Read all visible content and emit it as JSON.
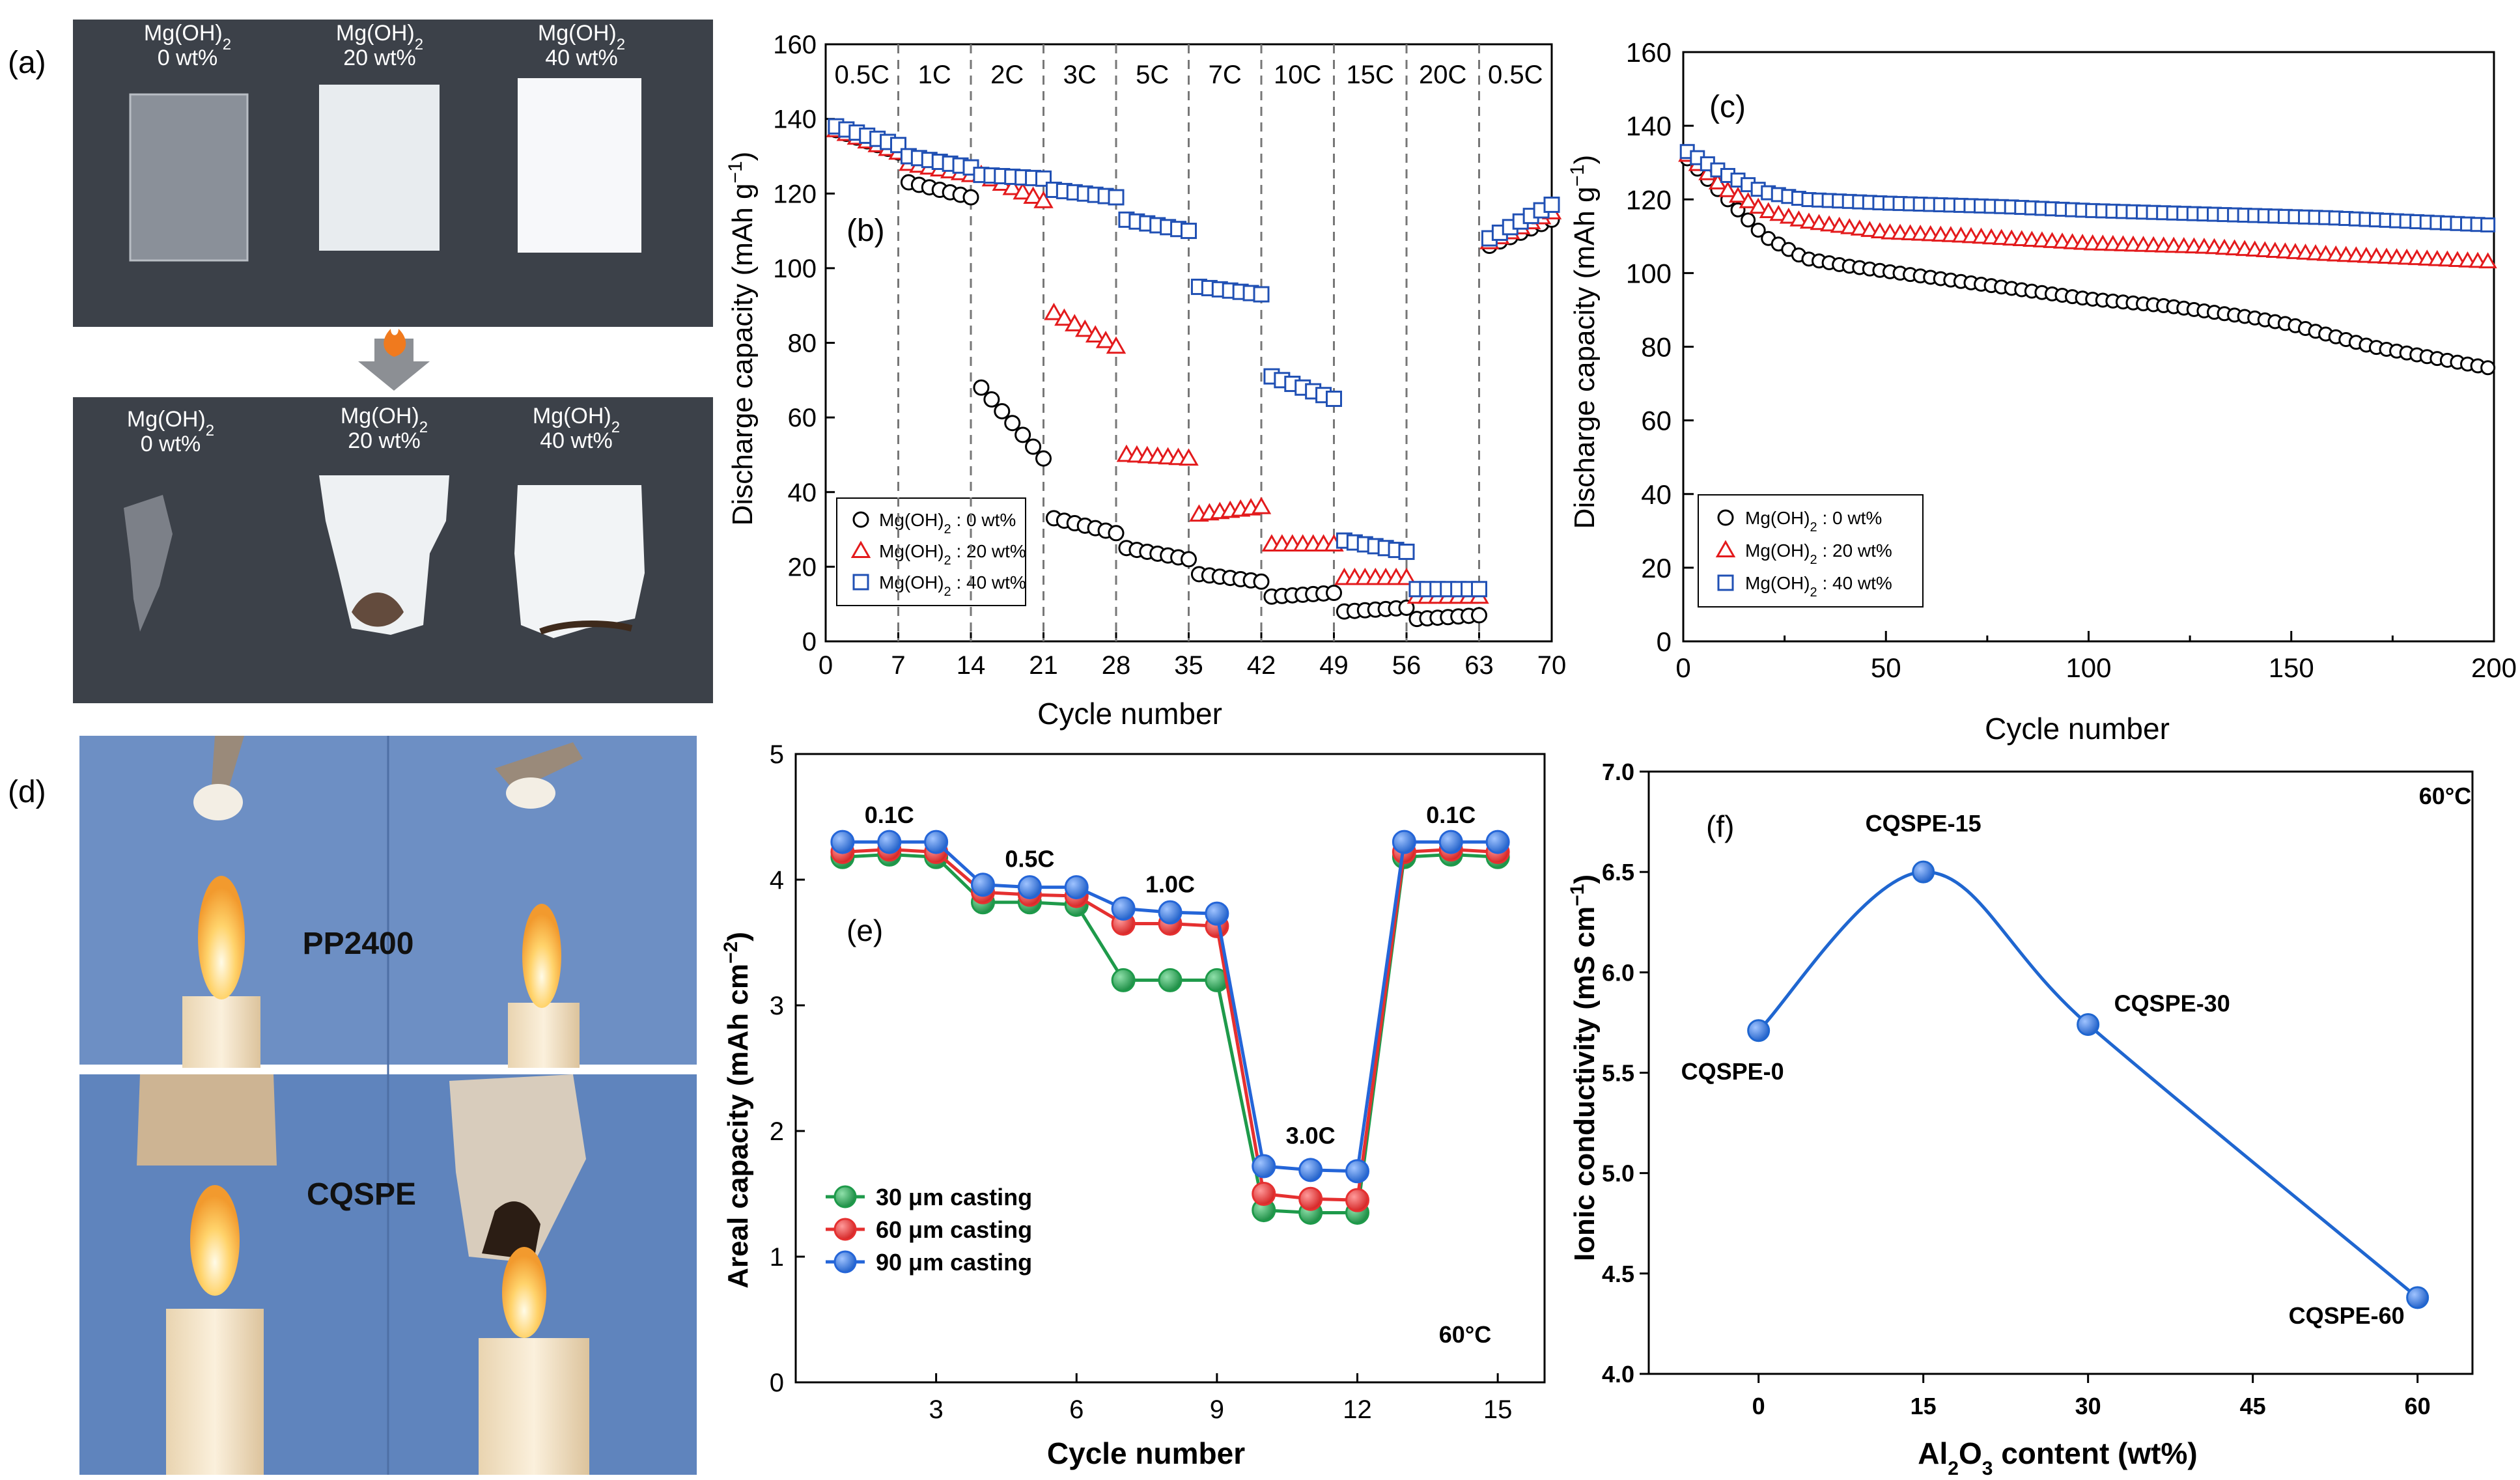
{
  "panel_labels": {
    "a": "(a)",
    "b": "(b)",
    "c": "(c)",
    "d": "(d)",
    "e": "(e)",
    "f": "(f)"
  },
  "photo_a": {
    "before": [
      {
        "name": "Mg(OH)",
        "sub": "2",
        "wt": "0 wt%"
      },
      {
        "name": "Mg(OH)",
        "sub": "2",
        "wt": "20 wt%"
      },
      {
        "name": "Mg(OH)",
        "sub": "2",
        "wt": "40 wt%"
      }
    ],
    "after": [
      {
        "name": "Mg(OH)",
        "sub": "2",
        "wt": "0 wt%"
      },
      {
        "name": "Mg(OH)",
        "sub": "2",
        "wt": "20 wt%"
      },
      {
        "name": "Mg(OH)",
        "sub": "2",
        "wt": "40 wt%"
      }
    ],
    "flame_icon": "fire-icon",
    "colors": {
      "background": "#3c4149",
      "film": "#f4f6f8",
      "burn": "#4a2e1c"
    }
  },
  "photo_d": {
    "top_label": "PP2400",
    "bottom_label": "CQSPE",
    "colors": {
      "background": "#6d8fc4",
      "candle": "#f3e6cf",
      "flame": "#ffcf5a"
    }
  },
  "chart_data": [
    {
      "id": "b",
      "type": "scatter",
      "xlabel": "Cycle number",
      "ylabel": "Discharge capacity (mAh g",
      "ylabel_sup": "−1",
      "ylabel_end": ")",
      "xlim": [
        0,
        70
      ],
      "ylim": [
        0,
        160
      ],
      "xticks": [
        0,
        7,
        14,
        21,
        28,
        35,
        42,
        49,
        56,
        63,
        70
      ],
      "yticks": [
        0,
        20,
        40,
        60,
        80,
        100,
        120,
        140,
        160
      ],
      "rate_boundaries": [
        7,
        14,
        21,
        28,
        35,
        42,
        49,
        56,
        63
      ],
      "rate_labels": [
        "0.5C",
        "1C",
        "2C",
        "3C",
        "5C",
        "7C",
        "10C",
        "15C",
        "20C",
        "0.5C"
      ],
      "legend": [
        {
          "label": "Mg(OH)",
          "sub": "2",
          "suffix": " : 0 wt%"
        },
        {
          "label": "Mg(OH)",
          "sub": "2",
          "suffix": " : 20 wt%"
        },
        {
          "label": "Mg(OH)",
          "sub": "2",
          "suffix": " : 40 wt%"
        }
      ],
      "series": [
        {
          "name": "Mg(OH)2 : 0 wt%",
          "marker": "circle",
          "color": "#000000",
          "segments": [
            [
              1,
              7,
              137,
              131
            ],
            [
              8,
              14,
              123,
              119
            ],
            [
              15,
              21,
              68,
              49
            ],
            [
              22,
              28,
              33,
              29
            ],
            [
              29,
              35,
              25,
              22
            ],
            [
              36,
              42,
              18,
              16
            ],
            [
              43,
              49,
              12,
              13
            ],
            [
              50,
              56,
              8,
              9
            ],
            [
              57,
              63,
              6,
              7
            ],
            [
              64,
              70,
              106,
              113
            ]
          ]
        },
        {
          "name": "Mg(OH)2 : 20 wt%",
          "marker": "triangle",
          "color": "#e31a1c",
          "segments": [
            [
              1,
              7,
              137,
              131
            ],
            [
              8,
              14,
              128,
              125
            ],
            [
              15,
              21,
              125,
              118
            ],
            [
              22,
              28,
              88,
              79
            ],
            [
              29,
              35,
              50,
              49
            ],
            [
              36,
              42,
              34,
              36
            ],
            [
              43,
              49,
              26,
              26
            ],
            [
              50,
              56,
              17,
              17
            ],
            [
              57,
              63,
              12,
              12
            ],
            [
              64,
              70,
              107,
              115
            ]
          ]
        },
        {
          "name": "Mg(OH)2 : 40 wt%",
          "marker": "square",
          "color": "#2050b4",
          "segments": [
            [
              1,
              7,
              138,
              133
            ],
            [
              8,
              14,
              130,
              127
            ],
            [
              15,
              21,
              125,
              124
            ],
            [
              22,
              28,
              121,
              119
            ],
            [
              29,
              35,
              113,
              110
            ],
            [
              36,
              42,
              95,
              93
            ],
            [
              43,
              49,
              71,
              65
            ],
            [
              50,
              56,
              27,
              24
            ],
            [
              57,
              63,
              14,
              14
            ],
            [
              64,
              70,
              108,
              117
            ]
          ]
        }
      ]
    },
    {
      "id": "c",
      "type": "scatter",
      "xlabel": "Cycle number",
      "ylabel": "Discharge capacity (mAh g",
      "ylabel_sup": "−1",
      "ylabel_end": ")",
      "xlim": [
        0,
        200
      ],
      "ylim": [
        0,
        160
      ],
      "xticks": [
        0,
        50,
        100,
        150,
        200
      ],
      "yticks": [
        0,
        20,
        40,
        60,
        80,
        100,
        120,
        140,
        160
      ],
      "legend": [
        {
          "label": "Mg(OH)",
          "sub": "2",
          "suffix": "  : 0 wt%"
        },
        {
          "label": "Mg(OH)",
          "sub": "2",
          "suffix": "  : 20 wt%"
        },
        {
          "label": "Mg(OH)",
          "sub": "2",
          "suffix": "  : 40 wt%"
        }
      ],
      "series": [
        {
          "name": "Mg(OH)2 : 0 wt%",
          "marker": "circle",
          "color": "#000000",
          "x": [
            1,
            10,
            20,
            30,
            40,
            60,
            80,
            100,
            120,
            140,
            150,
            160,
            170,
            180,
            190,
            200
          ],
          "y": [
            131,
            121,
            110,
            104,
            102,
            99,
            96,
            93,
            91,
            88,
            86,
            83,
            80,
            78,
            76,
            74
          ]
        },
        {
          "name": "Mg(OH)2 : 20 wt%",
          "marker": "triangle",
          "color": "#e31a1c",
          "x": [
            1,
            10,
            20,
            30,
            50,
            70,
            100,
            130,
            160,
            180,
            200
          ],
          "y": [
            132,
            123,
            117,
            114,
            111,
            110,
            108,
            107,
            105,
            104,
            103
          ]
        },
        {
          "name": "Mg(OH)2 : 40 wt%",
          "marker": "square",
          "color": "#2050b4",
          "x": [
            1,
            10,
            20,
            30,
            50,
            80,
            100,
            130,
            160,
            180,
            200
          ],
          "y": [
            133,
            127,
            122,
            120,
            119,
            118,
            117,
            116,
            115,
            114,
            113
          ]
        }
      ]
    },
    {
      "id": "e",
      "type": "line",
      "xlabel": "Cycle number",
      "ylabel": "Areal capacity (mAh cm",
      "ylabel_sup": "−2",
      "ylabel_end": ")",
      "xlim": [
        0,
        16
      ],
      "ylim": [
        0,
        5
      ],
      "xticks": [
        3,
        6,
        9,
        12,
        15
      ],
      "yticks": [
        0,
        1,
        2,
        3,
        4,
        5
      ],
      "rate_labels": [
        {
          "text": "0.1C",
          "x": 2,
          "y": 4.45
        },
        {
          "text": "0.5C",
          "x": 5,
          "y": 4.1
        },
        {
          "text": "1.0C",
          "x": 8,
          "y": 3.9
        },
        {
          "text": "3.0C",
          "x": 11,
          "y": 1.9
        },
        {
          "text": "0.1C",
          "x": 14,
          "y": 4.45
        }
      ],
      "temperature": "60°C",
      "x": [
        1,
        2,
        3,
        4,
        5,
        6,
        7,
        8,
        9,
        10,
        11,
        12,
        13,
        14,
        15
      ],
      "series": [
        {
          "name": "30 μm casting",
          "color": "#1e9a4a",
          "values": [
            4.18,
            4.2,
            4.18,
            3.82,
            3.82,
            3.8,
            3.2,
            3.2,
            3.2,
            1.37,
            1.35,
            1.35,
            4.18,
            4.2,
            4.18
          ]
        },
        {
          "name": "60 μm casting",
          "color": "#e53030",
          "values": [
            4.22,
            4.24,
            4.22,
            3.9,
            3.88,
            3.87,
            3.65,
            3.65,
            3.63,
            1.5,
            1.46,
            1.45,
            4.22,
            4.24,
            4.22
          ]
        },
        {
          "name": "90 μm casting",
          "color": "#2465d8",
          "values": [
            4.3,
            4.3,
            4.3,
            3.96,
            3.94,
            3.94,
            3.77,
            3.74,
            3.73,
            1.72,
            1.69,
            1.68,
            4.3,
            4.3,
            4.3
          ]
        }
      ]
    },
    {
      "id": "f",
      "type": "line",
      "xlabel": "Al",
      "xlabel_sub": "2",
      "xlabel_mid": "O",
      "xlabel_sub2": "3",
      "xlabel_end": " content (wt%)",
      "ylabel": "Ionic conductivity (mS cm",
      "ylabel_sup": "−1",
      "ylabel_end": ")",
      "xlim": [
        -10,
        65
      ],
      "ylim": [
        4.0,
        7.0
      ],
      "xticks": [
        0,
        15,
        30,
        45,
        60
      ],
      "yticks": [
        4.0,
        4.5,
        5.0,
        5.5,
        6.0,
        6.5,
        7.0
      ],
      "temperature": "60°C",
      "color": "#1f66d0",
      "points": [
        {
          "x": 0,
          "y": 5.71,
          "label": "CQSPE-0"
        },
        {
          "x": 15,
          "y": 6.5,
          "label": "CQSPE-15"
        },
        {
          "x": 30,
          "y": 5.74,
          "label": "CQSPE-30"
        },
        {
          "x": 60,
          "y": 4.38,
          "label": "CQSPE-60"
        }
      ]
    }
  ]
}
